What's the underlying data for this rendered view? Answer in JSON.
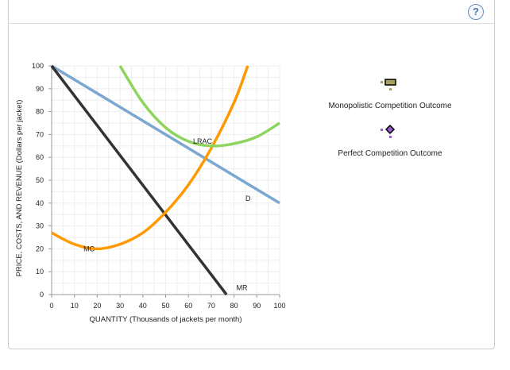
{
  "help_label": "?",
  "chart_data": {
    "type": "line",
    "xlabel": "QUANTITY (Thousands of jackets per month)",
    "ylabel": "PRICE, COSTS, AND REVENUE (Dollars per jacket)",
    "xlim": [
      0,
      100
    ],
    "ylim": [
      0,
      100
    ],
    "xticks": [
      "0",
      "10",
      "20",
      "30",
      "40",
      "50",
      "60",
      "70",
      "80",
      "90",
      "100"
    ],
    "yticks": [
      "0",
      "10",
      "20",
      "30",
      "40",
      "50",
      "60",
      "70",
      "80",
      "90",
      "100"
    ],
    "grid": true,
    "series": [
      {
        "name": "D",
        "color": "#7ba7d0",
        "points": [
          [
            0,
            100
          ],
          [
            100,
            40
          ]
        ]
      },
      {
        "name": "MR",
        "color": "#333333",
        "points": [
          [
            0,
            100
          ],
          [
            76.7,
            0
          ]
        ]
      },
      {
        "name": "MC",
        "color": "#ff9900",
        "points": [
          [
            0,
            27
          ],
          [
            10,
            22
          ],
          [
            20,
            20
          ],
          [
            30,
            22
          ],
          [
            40,
            27
          ],
          [
            50,
            36
          ],
          [
            60,
            48
          ],
          [
            70,
            64
          ],
          [
            80,
            84
          ],
          [
            86,
            100
          ]
        ]
      },
      {
        "name": "LRAC",
        "color": "#8ed45e",
        "points": [
          [
            30,
            100
          ],
          [
            40,
            84
          ],
          [
            50,
            73
          ],
          [
            60,
            67
          ],
          [
            70,
            65
          ],
          [
            80,
            66
          ],
          [
            90,
            69
          ],
          [
            100,
            75
          ]
        ]
      }
    ],
    "labels": [
      {
        "text": "LRAC",
        "x": 62,
        "y": 67
      },
      {
        "text": "D",
        "x": 85,
        "y": 42
      },
      {
        "text": "MC",
        "x": 14,
        "y": 20
      },
      {
        "text": "MR",
        "x": 81,
        "y": 3
      }
    ]
  },
  "legend": [
    {
      "label": "Monopolistic Competition Outcome",
      "marker": "rectangle",
      "color": "#a8a060"
    },
    {
      "label": "Perfect Competition Outcome",
      "marker": "diamond",
      "color": "#9b59d0"
    }
  ]
}
